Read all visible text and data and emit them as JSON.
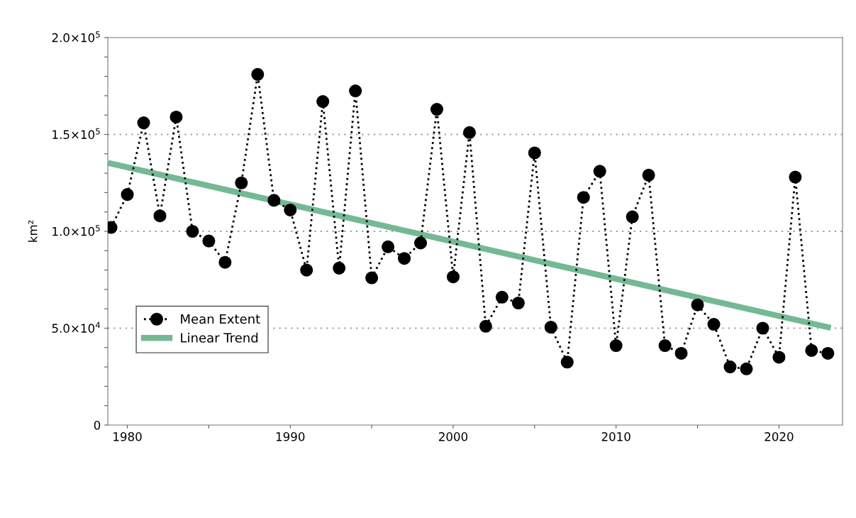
{
  "chart_data": {
    "type": "line",
    "ylabel": "km²",
    "x": [
      1979,
      1980,
      1981,
      1982,
      1983,
      1984,
      1985,
      1986,
      1987,
      1988,
      1989,
      1990,
      1991,
      1992,
      1993,
      1994,
      1995,
      1996,
      1997,
      1998,
      1999,
      2000,
      2001,
      2002,
      2003,
      2004,
      2005,
      2006,
      2007,
      2008,
      2009,
      2010,
      2011,
      2012,
      2013,
      2014,
      2015,
      2016,
      2017,
      2018,
      2019,
      2020,
      2021,
      2022,
      2023
    ],
    "series": [
      {
        "name": "Mean Extent",
        "color": "#000000",
        "marker": "circle",
        "line_style": "dotted",
        "values": [
          102000,
          119000,
          156000,
          108000,
          159000,
          100000,
          95000,
          84000,
          125000,
          181000,
          116000,
          111000,
          80000,
          167000,
          81000,
          172500,
          76000,
          92000,
          86000,
          94000,
          163000,
          76500,
          151000,
          51000,
          66000,
          63000,
          140500,
          50500,
          32500,
          117500,
          131000,
          41000,
          107500,
          129000,
          41000,
          37000,
          62000,
          52000,
          30000,
          29000,
          50000,
          35000,
          128000,
          38500,
          37000
        ]
      },
      {
        "name": "Linear Trend",
        "type": "line",
        "color": "#6db58e",
        "marker": "none",
        "line_style": "solid",
        "x": [
          1979,
          2023
        ],
        "values": [
          135000,
          50500
        ]
      }
    ],
    "xlim": [
      1978.8,
      2023.9
    ],
    "xticks": [
      1980,
      {
        "value": 1985,
        "label": null
      },
      1990,
      {
        "value": 1995,
        "label": null
      },
      2000,
      {
        "value": 2005,
        "label": null
      },
      2010,
      {
        "value": 2015,
        "label": null
      },
      2020
    ],
    "ylim": [
      0,
      200000
    ],
    "yticks": [
      {
        "value": 0,
        "label": "0"
      },
      {
        "value": 10000,
        "label": null
      },
      {
        "value": 20000,
        "label": null
      },
      {
        "value": 30000,
        "label": null
      },
      {
        "value": 40000,
        "label": null
      },
      {
        "value": 50000,
        "label": "5.0×10$^{4}$"
      },
      {
        "value": 60000,
        "label": null
      },
      {
        "value": 70000,
        "label": null
      },
      {
        "value": 80000,
        "label": null
      },
      {
        "value": 90000,
        "label": null
      },
      {
        "value": 100000,
        "label": "1.0×10$^{5}$"
      },
      {
        "value": 110000,
        "label": null
      },
      {
        "value": 120000,
        "label": null
      },
      {
        "value": 130000,
        "label": null
      },
      {
        "value": 140000,
        "label": null
      },
      {
        "value": 150000,
        "label": "1.5×10$^{5}$"
      },
      {
        "value": 160000,
        "label": null
      },
      {
        "value": 170000,
        "label": null
      },
      {
        "value": 180000,
        "label": null
      },
      {
        "value": 190000,
        "label": null
      },
      {
        "value": 200000,
        "label": "2.0×10$^{5}$"
      }
    ],
    "grid": "y",
    "legend": "lower left"
  }
}
